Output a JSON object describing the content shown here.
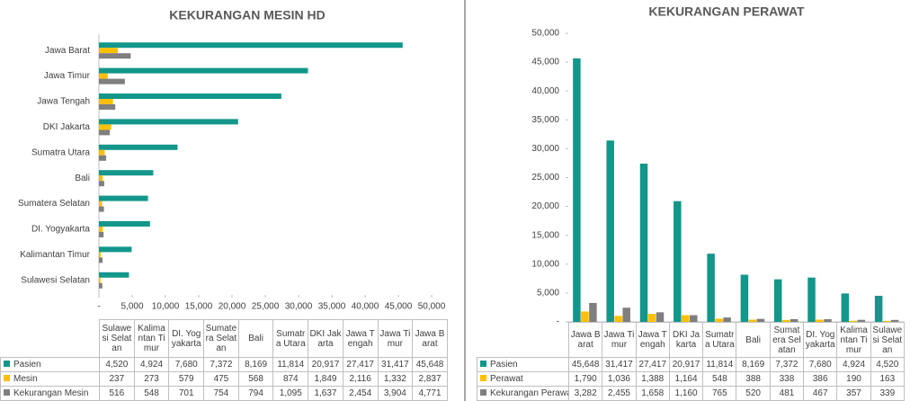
{
  "chart_data": [
    {
      "type": "barh",
      "title": "KEKURANGAN MESIN HD",
      "categories": [
        "Sulawesi Selatan",
        "Kalimantan Timur",
        "DI. Yogyakarta",
        "Sumatera Selatan",
        "Bali",
        "Sumatra Utara",
        "DKI Jakarta",
        "Jawa Tengah",
        "Jawa Timur",
        "Jawa Barat"
      ],
      "series": [
        {
          "name": "Pasien",
          "color": "#12978a",
          "values": [
            4520,
            4924,
            7680,
            7372,
            8169,
            11814,
            20917,
            27417,
            31417,
            45648
          ],
          "value_labels": [
            "4,520",
            "4,924",
            "7,680",
            "7,372",
            "8,169",
            "11,814",
            "20,917",
            "27,417",
            "31,417",
            "45,648"
          ]
        },
        {
          "name": "Mesin",
          "color": "#ffc000",
          "values": [
            237,
            273,
            579,
            475,
            568,
            874,
            1849,
            2116,
            1332,
            2837
          ],
          "value_labels": [
            "237",
            "273",
            "579",
            "475",
            "568",
            "874",
            "1,849",
            "2,116",
            "1,332",
            "2,837"
          ]
        },
        {
          "name": "Kekurangan Mesin",
          "color": "#7f7f7f",
          "values": [
            516,
            548,
            701,
            754,
            794,
            1095,
            1637,
            2454,
            3904,
            4771
          ],
          "value_labels": [
            "516",
            "548",
            "701",
            "754",
            "794",
            "1,095",
            "1,637",
            "2,454",
            "3,904",
            "4,771"
          ]
        }
      ],
      "xlim": [
        0,
        50000
      ],
      "xticks": [
        {
          "value": 0,
          "label": "-"
        },
        {
          "value": 5000,
          "label": "5,000"
        },
        {
          "value": 10000,
          "label": "10,000"
        },
        {
          "value": 15000,
          "label": "15,000"
        },
        {
          "value": 20000,
          "label": "20,000"
        },
        {
          "value": 25000,
          "label": "25,000"
        },
        {
          "value": 30000,
          "label": "30,000"
        },
        {
          "value": 35000,
          "label": "35,000"
        },
        {
          "value": 40000,
          "label": "40,000"
        },
        {
          "value": 45000,
          "label": "45,000"
        },
        {
          "value": 50000,
          "label": "50,000"
        }
      ]
    },
    {
      "type": "bar",
      "title": "KEKURANGAN PERAWAT",
      "categories": [
        "Jawa Barat",
        "Jawa Timur",
        "Jawa Tengah",
        "DKI Jakarta",
        "Sumatra Utara",
        "Bali",
        "Sumatera Selatan",
        "DI. Yogyakarta",
        "Kalimantan Timur",
        "Sulawesi Selatan"
      ],
      "series": [
        {
          "name": "Pasien",
          "color": "#12978a",
          "values": [
            45648,
            31417,
            27417,
            20917,
            11814,
            8169,
            7372,
            7680,
            4924,
            4520
          ],
          "value_labels": [
            "45,648",
            "31,417",
            "27,417",
            "20,917",
            "11,814",
            "8,169",
            "7,372",
            "7,680",
            "4,924",
            "4,520"
          ]
        },
        {
          "name": "Perawat",
          "color": "#ffc000",
          "values": [
            1790,
            1036,
            1388,
            1164,
            548,
            388,
            338,
            386,
            190,
            163
          ],
          "value_labels": [
            "1,790",
            "1,036",
            "1,388",
            "1,164",
            "548",
            "388",
            "338",
            "386",
            "190",
            "163"
          ]
        },
        {
          "name": "Kekurangan Perawat",
          "color": "#7f7f7f",
          "values": [
            3282,
            2455,
            1658,
            1160,
            765,
            520,
            481,
            467,
            357,
            339
          ],
          "value_labels": [
            "3,282",
            "2,455",
            "1,658",
            "1,160",
            "765",
            "520",
            "481",
            "467",
            "357",
            "339"
          ]
        }
      ],
      "ylim": [
        0,
        50000
      ],
      "yticks": [
        {
          "value": 0,
          "label": "-"
        },
        {
          "value": 5000,
          "label": "5,000"
        },
        {
          "value": 10000,
          "label": "10,000"
        },
        {
          "value": 15000,
          "label": "15,000"
        },
        {
          "value": 20000,
          "label": "20,000"
        },
        {
          "value": 25000,
          "label": "25,000"
        },
        {
          "value": 30000,
          "label": "30,000"
        },
        {
          "value": 35000,
          "label": "35,000"
        },
        {
          "value": 40000,
          "label": "40,000"
        },
        {
          "value": 45000,
          "label": "45,000"
        },
        {
          "value": 50000,
          "label": "50,000"
        }
      ]
    }
  ]
}
